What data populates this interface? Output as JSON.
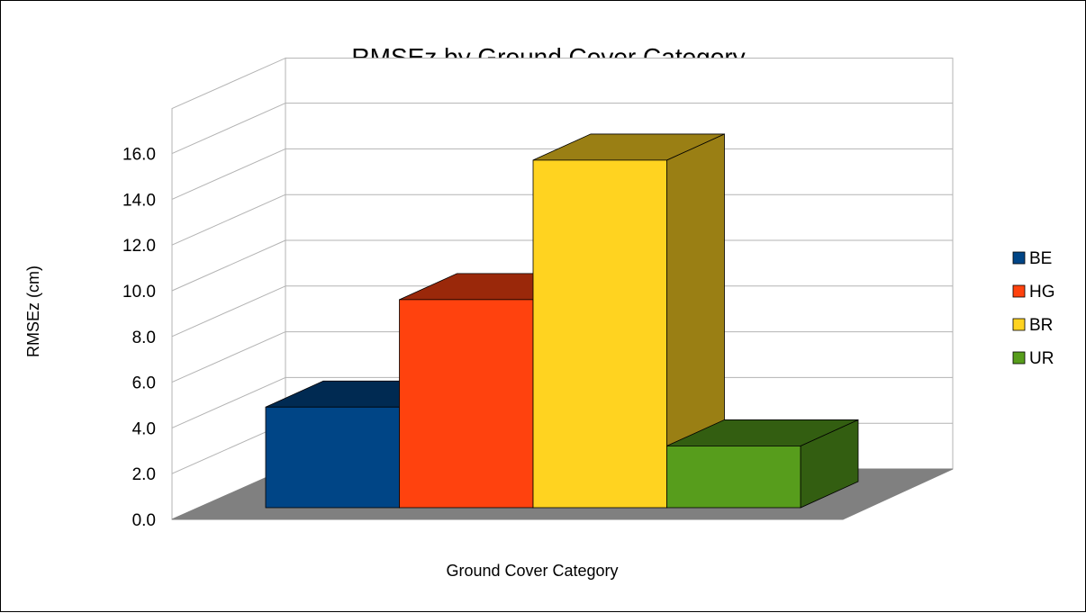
{
  "chart_data": {
    "type": "bar",
    "title": "RMSEz by Ground Cover Category",
    "xlabel": "Ground Cover Category",
    "ylabel": "RMSEz (cm)",
    "ylim": [
      0,
      16
    ],
    "yticks": [
      "0.0",
      "2.0",
      "4.0",
      "6.0",
      "8.0",
      "10.0",
      "12.0",
      "14.0",
      "16.0"
    ],
    "grid": true,
    "legend_position": "right",
    "three_d": true,
    "series": [
      {
        "name": "BE",
        "values": [
          4.4
        ],
        "color": "#004586",
        "side_color": "#002a52",
        "top_color": "#002a52"
      },
      {
        "name": "HG",
        "values": [
          9.1
        ],
        "color": "#ff420e",
        "side_color": "#9a280a",
        "top_color": "#9a280a"
      },
      {
        "name": "BR",
        "values": [
          15.2
        ],
        "color": "#ffd320",
        "side_color": "#9a7f14",
        "top_color": "#9a7f14"
      },
      {
        "name": "UR",
        "values": [
          2.7
        ],
        "color": "#579d1c",
        "side_color": "#335e11",
        "top_color": "#335e11"
      }
    ]
  }
}
